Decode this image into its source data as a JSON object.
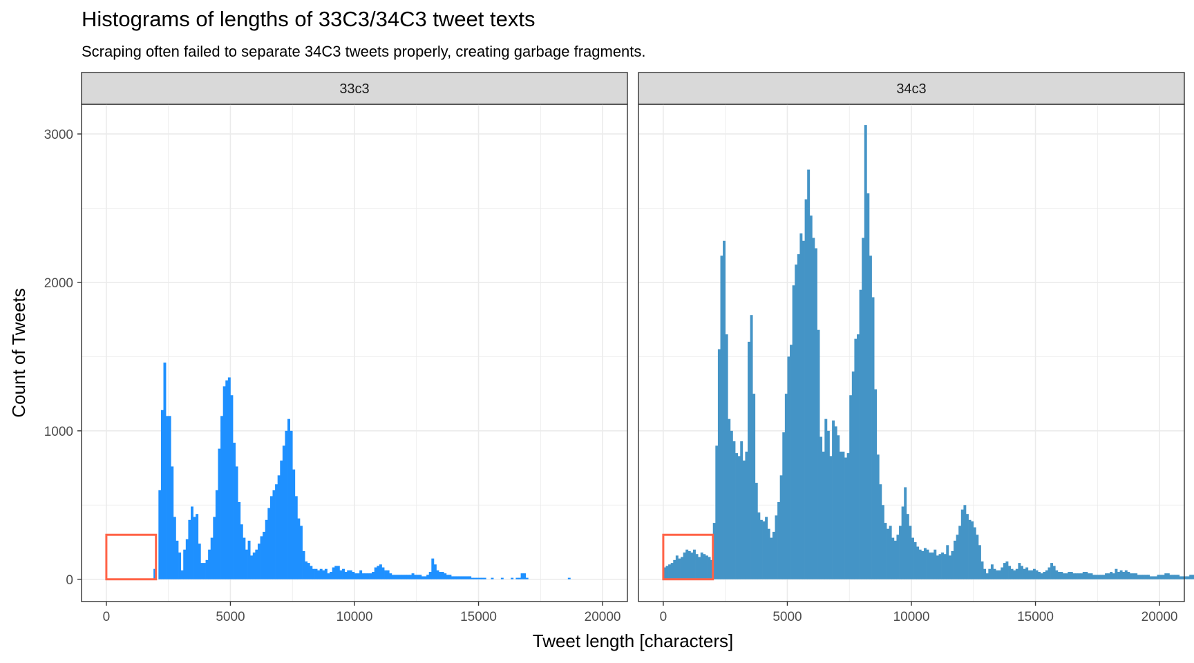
{
  "chart_data": {
    "type": "bar",
    "title": "Histograms of lengths of 33C3/34C3 tweet texts",
    "subtitle": "Scraping often failed to separate 34C3 tweets properly, creating garbage fragments.",
    "xlabel": "Tweet length [characters]",
    "ylabel": "Count of Tweets",
    "xlim": [
      -1000,
      21000
    ],
    "ylim": [
      -150,
      3200
    ],
    "x_ticks": [
      0,
      5000,
      10000,
      15000,
      20000
    ],
    "y_ticks": [
      0,
      1000,
      2000,
      3000
    ],
    "grid": true,
    "bin_width": 100,
    "highlight_box": {
      "x0": 0,
      "x1": 2000,
      "y0": 0,
      "y1": 300,
      "color": "#ff6347"
    },
    "panels": [
      {
        "label": "33c3",
        "color": "#1e90ff",
        "bin_start": 1900,
        "values": [
          70,
          0,
          600,
          1140,
          1460,
          1100,
          1100,
          760,
          420,
          260,
          180,
          60,
          200,
          270,
          400,
          490,
          420,
          440,
          240,
          110,
          110,
          130,
          200,
          280,
          420,
          600,
          880,
          1100,
          1300,
          1340,
          1360,
          1240,
          920,
          760,
          520,
          370,
          280,
          200,
          260,
          160,
          180,
          200,
          240,
          290,
          320,
          400,
          480,
          560,
          600,
          640,
          700,
          800,
          900,
          1000,
          1080,
          1000,
          740,
          560,
          410,
          360,
          190,
          120,
          110,
          90,
          70,
          70,
          60,
          70,
          60,
          70,
          40,
          50,
          80,
          90,
          90,
          60,
          70,
          50,
          60,
          60,
          50,
          40,
          40,
          60,
          40,
          40,
          40,
          40,
          50,
          80,
          90,
          100,
          80,
          60,
          60,
          40,
          30,
          30,
          30,
          30,
          30,
          30,
          30,
          30,
          40,
          30,
          30,
          30,
          20,
          20,
          30,
          50,
          140,
          100,
          60,
          50,
          50,
          40,
          30,
          30,
          20,
          20,
          20,
          20,
          20,
          20,
          20,
          20,
          10,
          10,
          10,
          10,
          10,
          10,
          0,
          0,
          10,
          0,
          0,
          0,
          10,
          0,
          0,
          0,
          10,
          0,
          10,
          10,
          40,
          40,
          10,
          0,
          0,
          0,
          0,
          0,
          0,
          0,
          0,
          0,
          0,
          0,
          0,
          0,
          0,
          0,
          0,
          10,
          0,
          0,
          0,
          0,
          0,
          0,
          0,
          0,
          0,
          0,
          0,
          0,
          0,
          0,
          0,
          0,
          0,
          0,
          0,
          0,
          0,
          0,
          0
        ]
      },
      {
        "label": "34c3",
        "color": "#4494c6",
        "bin_start": 0,
        "values": [
          80,
          90,
          100,
          110,
          130,
          160,
          140,
          150,
          180,
          200,
          190,
          180,
          200,
          170,
          150,
          180,
          170,
          160,
          150,
          130,
          380,
          900,
          1550,
          2180,
          2280,
          1650,
          1080,
          1000,
          930,
          850,
          830,
          930,
          800,
          860,
          1600,
          1780,
          1250,
          650,
          450,
          400,
          390,
          420,
          340,
          280,
          320,
          430,
          520,
          700,
          990,
          1250,
          1500,
          1580,
          1980,
          2120,
          2190,
          2330,
          2280,
          2560,
          2760,
          2450,
          2300,
          2230,
          1680,
          960,
          860,
          1080,
          1000,
          830,
          1070,
          1030,
          970,
          860,
          860,
          820,
          850,
          1240,
          1400,
          1620,
          1650,
          1950,
          2300,
          3060,
          2600,
          2180,
          1900,
          1280,
          840,
          640,
          500,
          380,
          340,
          360,
          280,
          260,
          300,
          360,
          490,
          620,
          440,
          360,
          280,
          250,
          220,
          200,
          190,
          210,
          200,
          180,
          180,
          200,
          160,
          170,
          180,
          170,
          230,
          160,
          190,
          260,
          300,
          360,
          470,
          500,
          440,
          400,
          390,
          350,
          300,
          230,
          120,
          70,
          40,
          70,
          100,
          70,
          60,
          60,
          80,
          110,
          120,
          90,
          70,
          60,
          70,
          110,
          90,
          70,
          80,
          60,
          60,
          70,
          60,
          50,
          40,
          50,
          60,
          80,
          110,
          90,
          60,
          50,
          50,
          40,
          40,
          50,
          50,
          40,
          40,
          40,
          40,
          50,
          50,
          40,
          40,
          30,
          30,
          30,
          30,
          30,
          40,
          40,
          50,
          40,
          70,
          50,
          60,
          50,
          60,
          50,
          40,
          40,
          40,
          30,
          30,
          30,
          30,
          30,
          20,
          20,
          20,
          30,
          30,
          30,
          40,
          40,
          30,
          30,
          30,
          30,
          20,
          20,
          20,
          20,
          30,
          30,
          30,
          40
        ]
      }
    ]
  }
}
